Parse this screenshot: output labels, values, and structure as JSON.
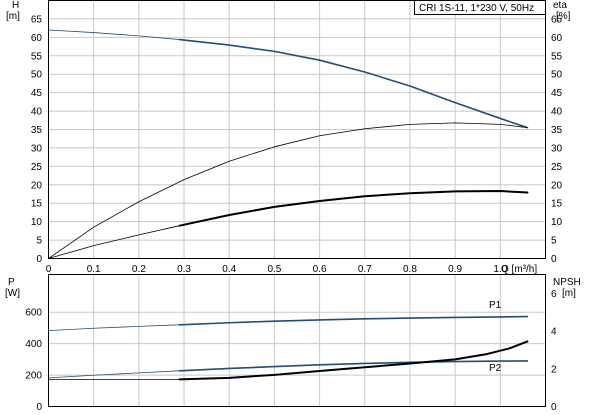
{
  "colors": {
    "blue": "#1f4e79",
    "black": "#000000",
    "thin": "#000000",
    "grid": "#c8c8c8"
  },
  "chart_data": [
    {
      "type": "line",
      "title": "CRI 1S-11, 1*230 V, 50Hz",
      "ylabel_left": "H",
      "ylabel_left_unit": "[m]",
      "ylabel_right": "eta",
      "ylabel_right_unit": "[%]",
      "xlabel": "Q [m³/h]",
      "xlim": [
        0,
        1.1
      ],
      "ylim": [
        0,
        70
      ],
      "x_ticks": [
        "0",
        "0.1",
        "0.2",
        "0.3",
        "0.4",
        "0.5",
        "0.6",
        "0.7",
        "0.8",
        "0.9",
        "1.0"
      ],
      "y_ticks": [
        "0",
        "5",
        "10",
        "15",
        "20",
        "25",
        "30",
        "35",
        "40",
        "45",
        "50",
        "55",
        "60",
        "65"
      ],
      "grid": true,
      "series": [
        {
          "key": "H",
          "style": "blue",
          "thin_until": 0.29,
          "points": [
            [
              0,
              62
            ],
            [
              0.1,
              61.3
            ],
            [
              0.2,
              60.4
            ],
            [
              0.29,
              59.4
            ],
            [
              0.4,
              57.9
            ],
            [
              0.5,
              56.2
            ],
            [
              0.6,
              53.8
            ],
            [
              0.7,
              50.6
            ],
            [
              0.8,
              46.8
            ],
            [
              0.9,
              42.3
            ],
            [
              1.0,
              38.0
            ],
            [
              1.06,
              35.5
            ]
          ]
        },
        {
          "key": "eta",
          "style": "thin",
          "thin_until": 1.1,
          "points": [
            [
              0,
              0
            ],
            [
              0.1,
              8.5
            ],
            [
              0.2,
              15.4
            ],
            [
              0.3,
              21.4
            ],
            [
              0.4,
              26.4
            ],
            [
              0.5,
              30.3
            ],
            [
              0.6,
              33.3
            ],
            [
              0.7,
              35.2
            ],
            [
              0.8,
              36.4
            ],
            [
              0.9,
              36.8
            ],
            [
              1.0,
              36.4
            ],
            [
              1.06,
              35.5
            ]
          ]
        },
        {
          "key": "eta-pump",
          "style": "black",
          "thin_until": 0.29,
          "points": [
            [
              0,
              0
            ],
            [
              0.1,
              3.5
            ],
            [
              0.2,
              6.4
            ],
            [
              0.29,
              8.9
            ],
            [
              0.4,
              11.8
            ],
            [
              0.5,
              14.0
            ],
            [
              0.6,
              15.6
            ],
            [
              0.7,
              16.9
            ],
            [
              0.8,
              17.7
            ],
            [
              0.9,
              18.2
            ],
            [
              1.0,
              18.3
            ],
            [
              1.06,
              17.9
            ]
          ]
        }
      ]
    },
    {
      "type": "line",
      "ylabel_left": "P",
      "ylabel_left_unit": "[W]",
      "ylabel_right": "NPSH",
      "ylabel_right_unit": "[m]",
      "xlim": [
        0,
        1.1
      ],
      "ylim": [
        0,
        840
      ],
      "y_ticks_left": [
        "0",
        "200",
        "400",
        "600"
      ],
      "y_ticks_right": [
        "0",
        "2",
        "4",
        "6"
      ],
      "grid": true,
      "series": [
        {
          "name": "P1",
          "style": "blue",
          "thin_until": 0.29,
          "points": [
            [
              0,
              483
            ],
            [
              0.1,
              498
            ],
            [
              0.2,
              510
            ],
            [
              0.29,
              520
            ],
            [
              0.4,
              533
            ],
            [
              0.5,
              543
            ],
            [
              0.6,
              551
            ],
            [
              0.7,
              558
            ],
            [
              0.8,
              563
            ],
            [
              0.9,
              567
            ],
            [
              1.0,
              570
            ],
            [
              1.06,
              572
            ]
          ]
        },
        {
          "name": "P2",
          "style": "blue",
          "thin_until": 0.29,
          "points": [
            [
              0,
              182
            ],
            [
              0.1,
              199
            ],
            [
              0.2,
              214
            ],
            [
              0.29,
              227
            ],
            [
              0.4,
              242
            ],
            [
              0.5,
              254
            ],
            [
              0.6,
              265
            ],
            [
              0.7,
              274
            ],
            [
              0.8,
              281
            ],
            [
              0.9,
              286
            ],
            [
              1.0,
              289
            ],
            [
              1.06,
              290
            ]
          ]
        },
        {
          "key": "NPSH",
          "style": "black",
          "thin_until": 0.29,
          "axis": "right",
          "points": [
            [
              0,
              1.44
            ],
            [
              0.1,
              1.44
            ],
            [
              0.2,
              1.44
            ],
            [
              0.29,
              1.44
            ],
            [
              0.4,
              1.52
            ],
            [
              0.5,
              1.68
            ],
            [
              0.6,
              1.88
            ],
            [
              0.7,
              2.08
            ],
            [
              0.8,
              2.28
            ],
            [
              0.9,
              2.5
            ],
            [
              0.97,
              2.78
            ],
            [
              1.02,
              3.08
            ],
            [
              1.06,
              3.45
            ]
          ]
        }
      ]
    }
  ]
}
